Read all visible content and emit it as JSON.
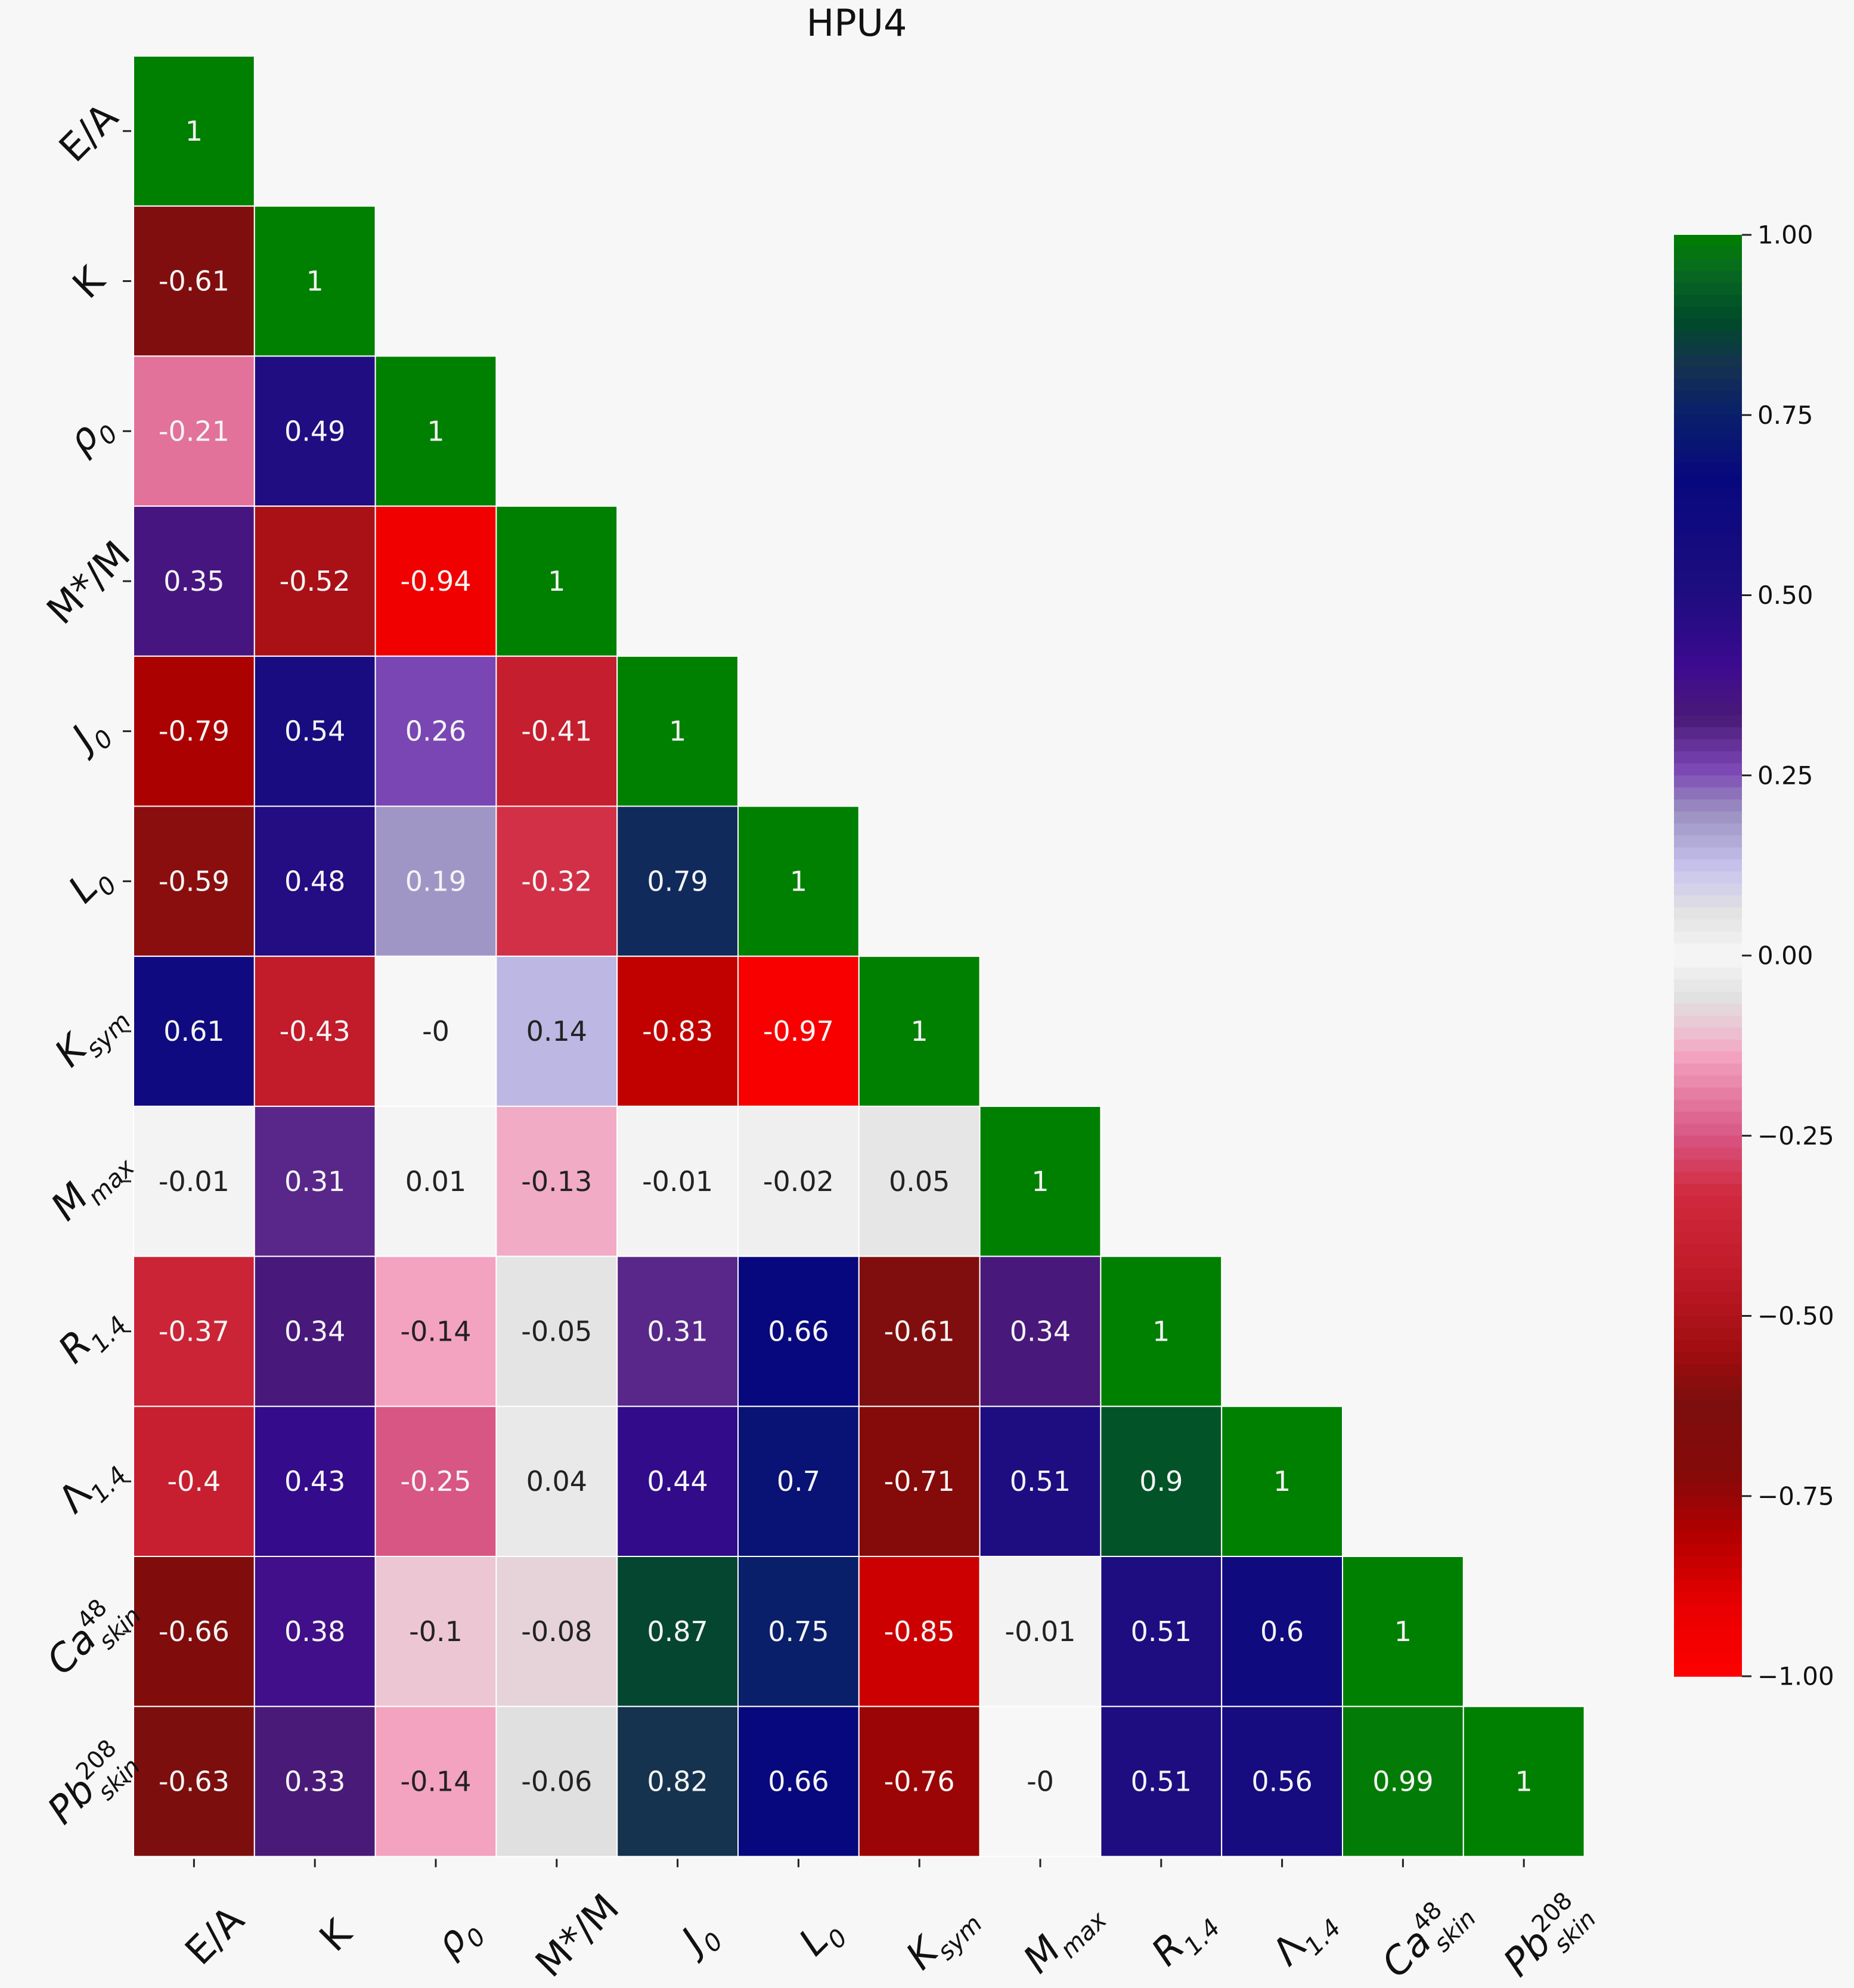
{
  "chart_data": {
    "type": "heatmap",
    "title": "HPU4",
    "labels": [
      {
        "main": "E/A",
        "sub": "",
        "sup": ""
      },
      {
        "main": "K",
        "sub": "",
        "sup": ""
      },
      {
        "main": "ρ",
        "sub": "0",
        "sup": ""
      },
      {
        "main": "M*/M",
        "sub": "",
        "sup": ""
      },
      {
        "main": "J",
        "sub": "0",
        "sup": ""
      },
      {
        "main": "L",
        "sub": "0",
        "sup": ""
      },
      {
        "main": "K",
        "sub": "sym",
        "sup": ""
      },
      {
        "main": "M",
        "sub": "max",
        "sup": ""
      },
      {
        "main": "R",
        "sub": "1.4",
        "sup": ""
      },
      {
        "main": "Λ",
        "sub": "1.4",
        "sup": ""
      },
      {
        "main": "Ca",
        "sub": "skin",
        "sup": "48"
      },
      {
        "main": "Pb",
        "sub": "skin",
        "sup": "208"
      }
    ],
    "matrix": [
      [
        1
      ],
      [
        -0.61,
        1
      ],
      [
        -0.21,
        0.49,
        1
      ],
      [
        0.35,
        -0.52,
        -0.94,
        1
      ],
      [
        -0.79,
        0.54,
        0.26,
        -0.41,
        1
      ],
      [
        -0.59,
        0.48,
        0.19,
        -0.32,
        0.79,
        1
      ],
      [
        0.61,
        -0.43,
        -0.0,
        0.14,
        -0.83,
        -0.97,
        1
      ],
      [
        -0.01,
        0.31,
        0.01,
        -0.13,
        -0.01,
        -0.02,
        0.05,
        1
      ],
      [
        -0.37,
        0.34,
        -0.14,
        -0.05,
        0.31,
        0.66,
        -0.61,
        0.34,
        1
      ],
      [
        -0.4,
        0.43,
        -0.25,
        0.04,
        0.44,
        0.7,
        -0.71,
        0.51,
        0.9,
        1
      ],
      [
        -0.66,
        0.38,
        -0.1,
        -0.08,
        0.87,
        0.75,
        -0.85,
        -0.01,
        0.51,
        0.6,
        1
      ],
      [
        -0.63,
        0.33,
        -0.14,
        -0.06,
        0.82,
        0.66,
        -0.76,
        -0.0,
        0.51,
        0.56,
        0.99,
        1
      ]
    ],
    "display": [
      [
        "1"
      ],
      [
        "-0.61",
        "1"
      ],
      [
        "-0.21",
        "0.49",
        "1"
      ],
      [
        "0.35",
        "-0.52",
        "-0.94",
        "1"
      ],
      [
        "-0.79",
        "0.54",
        "0.26",
        "-0.41",
        "1"
      ],
      [
        "-0.59",
        "0.48",
        "0.19",
        "-0.32",
        "0.79",
        "1"
      ],
      [
        "0.61",
        "-0.43",
        "-0",
        "0.14",
        "-0.83",
        "-0.97",
        "1"
      ],
      [
        "-0.01",
        "0.31",
        "0.01",
        "-0.13",
        "-0.01",
        "-0.02",
        "0.05",
        "1"
      ],
      [
        "-0.37",
        "0.34",
        "-0.14",
        "-0.05",
        "0.31",
        "0.66",
        "-0.61",
        "0.34",
        "1"
      ],
      [
        "-0.4",
        "0.43",
        "-0.25",
        "0.04",
        "0.44",
        "0.7",
        "-0.71",
        "0.51",
        "0.9",
        "1"
      ],
      [
        "-0.66",
        "0.38",
        "-0.1",
        "-0.08",
        "0.87",
        "0.75",
        "-0.85",
        "-0.01",
        "0.51",
        "0.6",
        "1"
      ],
      [
        "-0.63",
        "0.33",
        "-0.14",
        "-0.06",
        "0.82",
        "0.66",
        "-0.76",
        "-0",
        "0.51",
        "0.56",
        "0.99",
        "1"
      ]
    ],
    "colorbar": {
      "range": [
        -1,
        1
      ],
      "ticks": [
        1.0,
        0.75,
        0.5,
        0.25,
        0.0,
        -0.25,
        -0.5,
        -0.75,
        -1.0
      ],
      "tick_labels": [
        "1.00",
        "0.75",
        "0.50",
        "0.25",
        "0.00",
        "−0.25",
        "−0.50",
        "−0.75",
        "−1.00"
      ],
      "position": "right"
    },
    "colors": {
      "positive_stops": [
        [
          0.0,
          "#f7f7f7"
        ],
        [
          0.06,
          "#e2e2e2"
        ],
        [
          0.12,
          "#c8c4ee"
        ],
        [
          0.2,
          "#9a8fc0"
        ],
        [
          0.26,
          "#7a46b4"
        ],
        [
          0.33,
          "#4a1a78"
        ],
        [
          0.4,
          "#3d0a90"
        ],
        [
          0.5,
          "#1e0d80"
        ],
        [
          0.66,
          "#08087e"
        ],
        [
          0.76,
          "#0a2268"
        ],
        [
          0.82,
          "#15324f"
        ],
        [
          0.88,
          "#004a2a"
        ],
        [
          0.95,
          "#086a20"
        ],
        [
          1.0,
          "#008000"
        ]
      ],
      "negative_stops": [
        [
          0.0,
          "#f7f7f7"
        ],
        [
          0.06,
          "#e0e0e0"
        ],
        [
          0.1,
          "#ecc6d3"
        ],
        [
          0.14,
          "#f3a2c0"
        ],
        [
          0.25,
          "#d85683"
        ],
        [
          0.33,
          "#d12a3e"
        ],
        [
          0.43,
          "#c21b2a"
        ],
        [
          0.55,
          "#a00d10"
        ],
        [
          0.62,
          "#7c0e0e"
        ],
        [
          0.72,
          "#860a0a"
        ],
        [
          0.8,
          "#b00000"
        ],
        [
          0.9,
          "#e80000"
        ],
        [
          1.0,
          "#ff0000"
        ]
      ]
    }
  }
}
